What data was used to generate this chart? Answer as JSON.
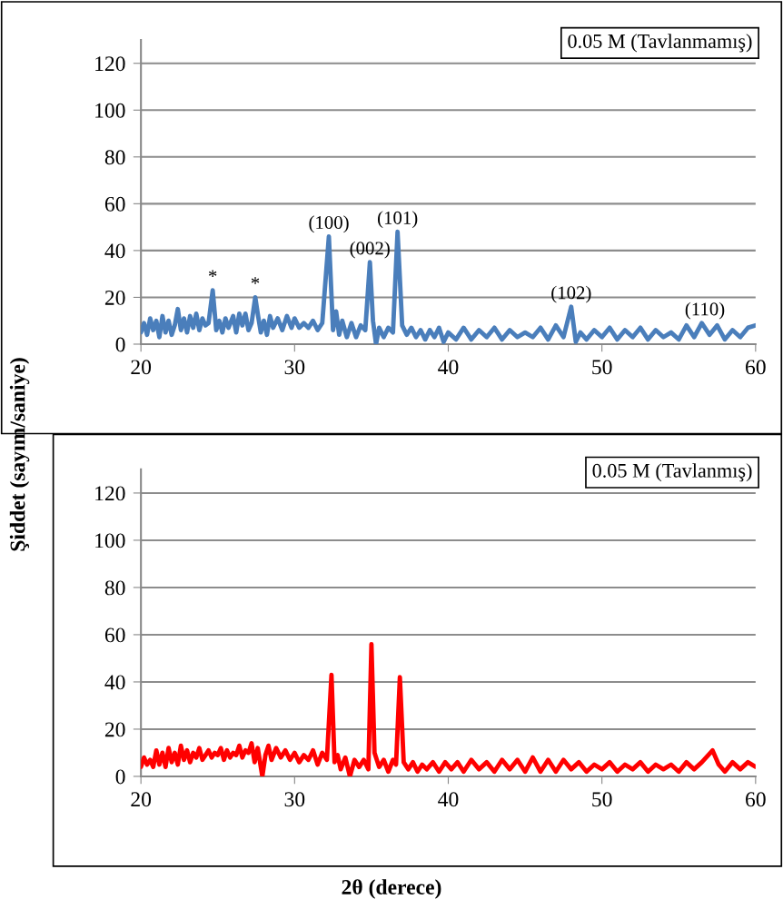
{
  "chart_data": [
    {
      "type": "line",
      "title": "0.05 M (Tavlanmamış)",
      "ylabel": "Şiddet (sayım/saniye)",
      "xlim": [
        20,
        60
      ],
      "xticks": [
        20,
        30,
        40,
        50,
        60
      ],
      "ylim": [
        0,
        130
      ],
      "yticks": [
        0,
        20,
        40,
        60,
        80,
        100,
        120
      ],
      "grid": "y",
      "series": [
        {
          "color": "#4a7ebb",
          "x": [
            20.0,
            20.2,
            20.4,
            20.6,
            20.8,
            21.0,
            21.2,
            21.4,
            21.6,
            21.8,
            22.0,
            22.2,
            22.4,
            22.6,
            22.8,
            23.0,
            23.2,
            23.4,
            23.6,
            23.8,
            24.0,
            24.2,
            24.4,
            24.67,
            24.9,
            25.1,
            25.3,
            25.5,
            25.7,
            26.0,
            26.2,
            26.4,
            26.6,
            26.8,
            27.0,
            27.2,
            27.44,
            27.6,
            27.8,
            28.0,
            28.2,
            28.4,
            28.6,
            28.9,
            29.2,
            29.5,
            29.8,
            30.0,
            30.3,
            30.6,
            30.9,
            31.2,
            31.5,
            31.8,
            32.23,
            32.5,
            32.7,
            32.9,
            33.1,
            33.4,
            33.7,
            34.0,
            34.3,
            34.6,
            34.9,
            35.1,
            35.3,
            35.5,
            35.8,
            36.1,
            36.4,
            36.7,
            37.0,
            37.3,
            37.6,
            37.9,
            38.2,
            38.5,
            38.8,
            39.1,
            39.4,
            39.7,
            40.0,
            40.5,
            41.0,
            41.5,
            42.0,
            42.5,
            43.0,
            43.5,
            44.0,
            44.5,
            45.0,
            45.5,
            46.0,
            46.5,
            47.0,
            47.5,
            48.0,
            48.3,
            48.6,
            49.0,
            49.5,
            50.0,
            50.5,
            51.0,
            51.5,
            52.0,
            52.5,
            53.0,
            53.5,
            54.0,
            54.5,
            55.0,
            55.5,
            56.0,
            56.5,
            57.0,
            57.5,
            58.0,
            58.5,
            59.0,
            59.5,
            60.0
          ],
          "values": [
            5,
            9,
            4,
            11,
            6,
            10,
            3,
            12,
            5,
            10,
            4,
            8,
            15,
            6,
            11,
            5,
            12,
            7,
            13,
            6,
            11,
            8,
            9,
            23,
            6,
            10,
            5,
            11,
            7,
            12,
            5,
            13,
            8,
            13,
            6,
            9,
            20,
            13,
            5,
            10,
            4,
            12,
            7,
            11,
            6,
            12,
            7,
            11,
            7,
            9,
            7,
            10,
            6,
            9,
            46,
            6,
            14,
            4,
            10,
            3,
            9,
            3,
            8,
            6,
            35,
            10,
            0,
            7,
            3,
            7,
            5,
            48,
            8,
            4,
            7,
            3,
            6,
            2,
            6,
            3,
            7,
            1,
            5,
            2,
            7,
            2,
            6,
            3,
            7,
            2,
            6,
            3,
            5,
            3,
            7,
            2,
            8,
            3,
            16,
            1,
            5,
            2,
            6,
            3,
            7,
            2,
            6,
            3,
            7,
            2,
            6,
            3,
            5,
            2,
            8,
            3,
            9,
            4,
            8,
            2,
            6,
            3,
            7,
            8
          ]
        }
      ],
      "annotations": [
        {
          "text": "*",
          "x": 24.67,
          "y": 23
        },
        {
          "text": "*",
          "x": 27.44,
          "y": 20
        },
        {
          "text": "(100)",
          "x": 32.23,
          "y": 46
        },
        {
          "text": "(002)",
          "x": 34.9,
          "y": 35
        },
        {
          "text": "(101)",
          "x": 36.7,
          "y": 48
        },
        {
          "text": "(102)",
          "x": 48.0,
          "y": 16
        },
        {
          "text": "(110)",
          "x": 56.7,
          "y": 9
        }
      ]
    },
    {
      "type": "line",
      "title": "0.05 M (Tavlanmış)",
      "xlabel": "2θ (derece)",
      "xlim": [
        20,
        60
      ],
      "xticks": [
        20,
        30,
        40,
        50,
        60
      ],
      "ylim": [
        0,
        130
      ],
      "yticks": [
        0,
        20,
        40,
        60,
        80,
        100,
        120
      ],
      "grid": "y",
      "series": [
        {
          "color": "#ff0000",
          "x": [
            20.0,
            20.2,
            20.4,
            20.6,
            20.8,
            21.0,
            21.2,
            21.4,
            21.6,
            21.8,
            22.0,
            22.2,
            22.4,
            22.6,
            22.8,
            23.0,
            23.2,
            23.4,
            23.6,
            23.8,
            24.0,
            24.2,
            24.4,
            24.6,
            24.8,
            25.0,
            25.2,
            25.4,
            25.6,
            25.8,
            26.0,
            26.2,
            26.4,
            26.6,
            26.8,
            27.0,
            27.2,
            27.4,
            27.6,
            27.9,
            28.1,
            28.3,
            28.5,
            28.8,
            29.1,
            29.4,
            29.7,
            30.0,
            30.3,
            30.6,
            30.9,
            31.2,
            31.5,
            31.8,
            32.1,
            32.4,
            32.6,
            32.8,
            33.0,
            33.3,
            33.6,
            33.9,
            34.2,
            34.5,
            34.8,
            35.0,
            35.2,
            35.5,
            35.8,
            36.1,
            36.4,
            36.6,
            36.85,
            37.1,
            37.4,
            37.7,
            38.0,
            38.3,
            38.6,
            39.0,
            39.4,
            39.8,
            40.2,
            40.6,
            41.0,
            41.5,
            42.0,
            42.5,
            43.0,
            43.5,
            44.0,
            44.5,
            45.0,
            45.5,
            46.0,
            46.5,
            47.0,
            47.5,
            48.0,
            48.5,
            49.0,
            49.5,
            50.0,
            50.5,
            51.0,
            51.5,
            52.0,
            52.5,
            53.0,
            53.5,
            54.0,
            54.5,
            55.0,
            55.5,
            56.0,
            56.5,
            57.2,
            57.6,
            58.0,
            58.5,
            59.0,
            59.5,
            60.0
          ],
          "values": [
            4,
            8,
            5,
            7,
            4,
            11,
            5,
            10,
            4,
            12,
            6,
            10,
            5,
            13,
            7,
            11,
            6,
            10,
            8,
            12,
            7,
            9,
            11,
            8,
            10,
            9,
            12,
            7,
            11,
            8,
            10,
            9,
            13,
            8,
            11,
            10,
            14,
            6,
            12,
            0,
            9,
            13,
            7,
            12,
            8,
            11,
            7,
            10,
            6,
            9,
            7,
            11,
            5,
            10,
            7,
            43,
            6,
            9,
            3,
            8,
            0,
            7,
            4,
            7,
            3,
            56,
            10,
            4,
            7,
            2,
            7,
            5,
            42,
            6,
            3,
            6,
            2,
            5,
            3,
            6,
            2,
            6,
            3,
            6,
            2,
            7,
            3,
            6,
            2,
            7,
            3,
            7,
            2,
            8,
            2,
            7,
            2,
            7,
            3,
            6,
            2,
            5,
            3,
            6,
            2,
            5,
            3,
            6,
            2,
            5,
            3,
            5,
            2,
            6,
            3,
            6,
            11,
            5,
            2,
            6,
            3,
            6,
            4
          ]
        }
      ]
    }
  ]
}
